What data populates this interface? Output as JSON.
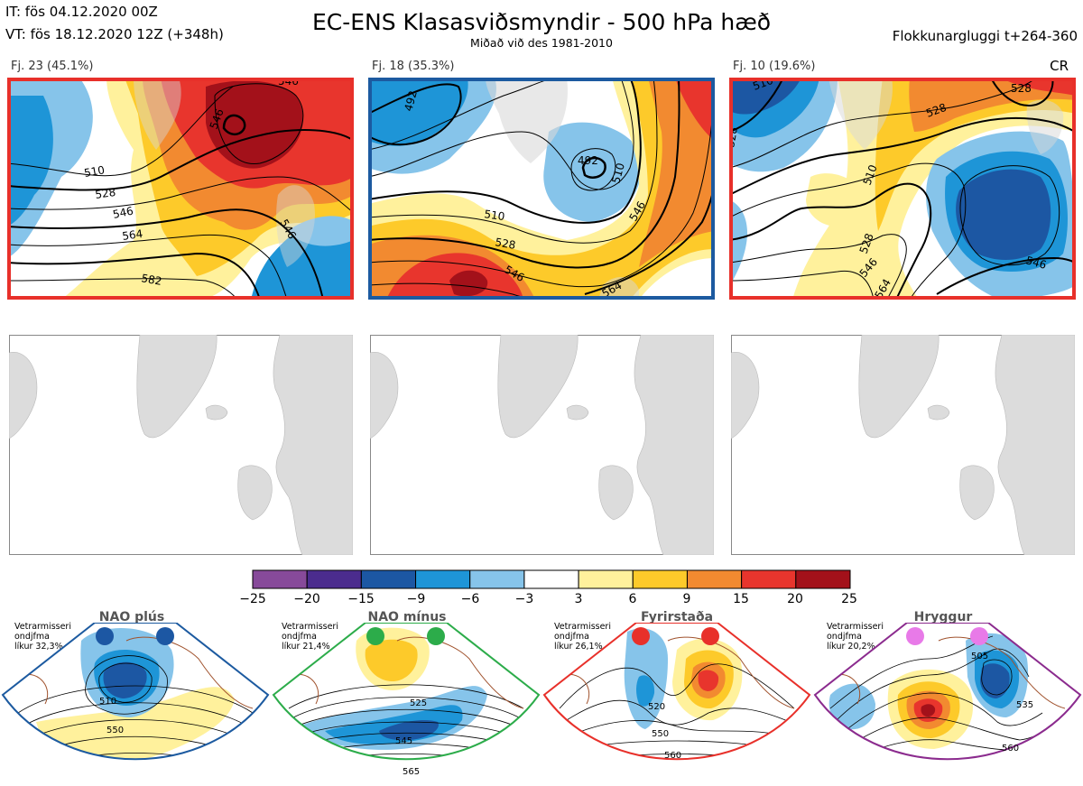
{
  "header": {
    "it": "IT: fös 04.12.2020 00Z",
    "vt": "VT: fös 18.12.2020 12Z  (+348h)",
    "title": "EC-ENS Klasasviðsmyndir - 500 hPa hæð",
    "subtitle": "Miðað við des 1981-2010",
    "window": "Flokkunargluggi t+264-360"
  },
  "panels": [
    {
      "label": "Fj. 23 (45.1%)",
      "border": "#e8302a",
      "contours": [
        "546",
        "510",
        "528",
        "546",
        "564",
        "582",
        "546",
        "546"
      ]
    },
    {
      "label": "Fj. 18 (35.3%)",
      "border": "#1c5aa0",
      "contours": [
        "492",
        "492",
        "510",
        "528",
        "546",
        "510",
        "546",
        "564"
      ]
    },
    {
      "label": "Fj. 10 (19.6%)",
      "border": "#e8302a",
      "contours": [
        "510",
        "528",
        "528",
        "510",
        "528",
        "546",
        "564",
        "546",
        "528"
      ]
    }
  ],
  "cr_label": "CR",
  "colorbar": {
    "ticks": [
      "−25",
      "−20",
      "−15",
      "−9",
      "−6",
      "−3",
      "3",
      "6",
      "9",
      "15",
      "20",
      "25"
    ],
    "colors": [
      "#874a9a",
      "#4b2c8e",
      "#1c57a3",
      "#1e95d7",
      "#86c4ea",
      "#ffffff",
      "#fff19c",
      "#fdca2a",
      "#f28a30",
      "#e8352d",
      "#a3111a"
    ]
  },
  "regimes": [
    {
      "name": "NAO plús",
      "text": [
        "Vetrarmisseri",
        "ondjfma",
        "líkur 32,3%"
      ],
      "border": "#1c5aa0",
      "dot": "#1c57a3",
      "contours": [
        "510",
        "550"
      ]
    },
    {
      "name": "NAO mínus",
      "text": [
        "Vetrarmisseri",
        "ondjfma",
        "líkur 21,4%"
      ],
      "border": "#2cac4a",
      "dot": "#2cac4a",
      "contours": [
        "525",
        "545",
        "565"
      ]
    },
    {
      "name": "Fyrirstaða",
      "text": [
        "Vetrarmisseri",
        "ondjfma",
        "líkur 26,1%"
      ],
      "border": "#e8302a",
      "dot": "#e8302a",
      "contours": [
        "520",
        "550",
        "560"
      ]
    },
    {
      "name": "Hryggur",
      "text": [
        "Vetrarmisseri",
        "ondjfma",
        "líkur 20,2%"
      ],
      "border": "#8b2b8e",
      "dot": "#e87ae8",
      "contours": [
        "505",
        "535",
        "560"
      ]
    }
  ]
}
